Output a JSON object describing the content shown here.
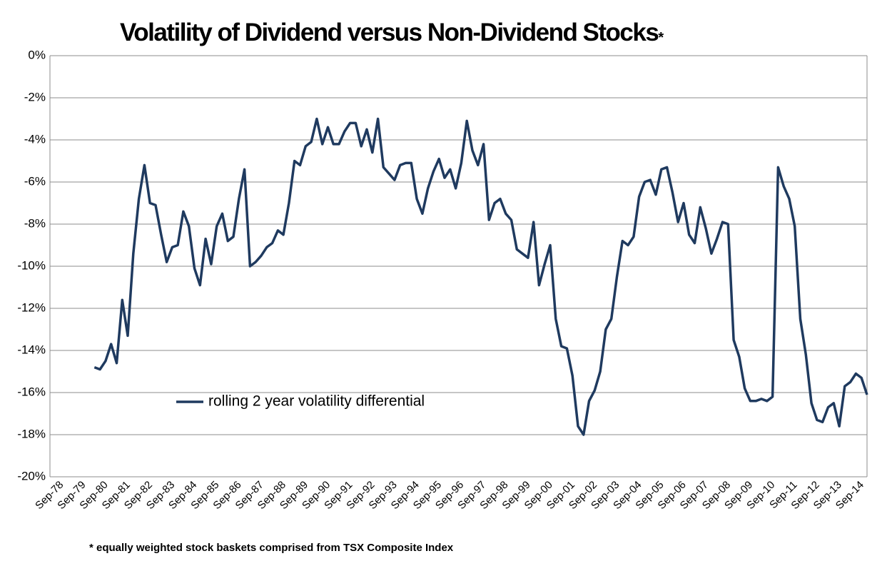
{
  "chart_data": {
    "type": "line",
    "title": "Volatility of Dividend versus Non-Dividend Stocks",
    "title_note": "*",
    "footnote": "* equally weighted stock baskets comprised from TSX Composite Index",
    "categories": [
      "Sep-78",
      null,
      null,
      null,
      "Sep-79",
      null,
      null,
      null,
      "Sep-80",
      null,
      null,
      null,
      "Sep-81",
      null,
      null,
      null,
      "Sep-82",
      null,
      null,
      null,
      "Sep-83",
      null,
      null,
      null,
      "Sep-84",
      null,
      null,
      null,
      "Sep-85",
      null,
      null,
      null,
      "Sep-86",
      null,
      null,
      null,
      "Sep-87",
      null,
      null,
      null,
      "Sep-88",
      null,
      null,
      null,
      "Sep-89",
      null,
      null,
      null,
      "Sep-90",
      null,
      null,
      null,
      "Sep-91",
      null,
      null,
      null,
      "Sep-92",
      null,
      null,
      null,
      "Sep-93",
      null,
      null,
      null,
      "Sep-94",
      null,
      null,
      null,
      "Sep-95",
      null,
      null,
      null,
      "Sep-96",
      null,
      null,
      null,
      "Sep-97",
      null,
      null,
      null,
      "Sep-98",
      null,
      null,
      null,
      "Sep-99",
      null,
      null,
      null,
      "Sep-00",
      null,
      null,
      null,
      "Sep-01",
      null,
      null,
      null,
      "Sep-02",
      null,
      null,
      null,
      "Sep-03",
      null,
      null,
      null,
      "Sep-04",
      null,
      null,
      null,
      "Sep-05",
      null,
      null,
      null,
      "Sep-06",
      null,
      null,
      null,
      "Sep-07",
      null,
      null,
      null,
      "Sep-08",
      null,
      null,
      null,
      "Sep-09",
      null,
      null,
      null,
      "Sep-10",
      null,
      null,
      null,
      "Sep-11",
      null,
      null,
      null,
      "Sep-12",
      null,
      null,
      null,
      "Sep-13",
      null,
      null,
      null,
      "Sep-14",
      null
    ],
    "series": [
      {
        "name": "rolling 2 year volatility differential",
        "color": "#1f3a5f",
        "values": [
          null,
          null,
          null,
          null,
          null,
          null,
          -14.8,
          -14.9,
          -14.5,
          -13.7,
          -14.6,
          -11.6,
          -13.3,
          -9.4,
          -6.8,
          -5.2,
          -7.0,
          -7.1,
          -8.5,
          -9.8,
          -9.1,
          -9.0,
          -7.4,
          -8.1,
          -10.1,
          -10.9,
          -8.7,
          -9.9,
          -8.1,
          -7.5,
          -8.8,
          -8.6,
          -6.8,
          -5.4,
          -10.0,
          -9.8,
          -9.5,
          -9.1,
          -8.9,
          -8.3,
          -8.5,
          -7.0,
          -5.0,
          -5.2,
          -4.3,
          -4.1,
          -3.0,
          -4.2,
          -3.4,
          -4.2,
          -4.2,
          -3.6,
          -3.2,
          -3.2,
          -4.3,
          -3.5,
          -4.6,
          -3.0,
          -5.3,
          -5.6,
          -5.9,
          -5.2,
          -5.1,
          -5.1,
          -6.8,
          -7.5,
          -6.3,
          -5.5,
          -4.9,
          -5.8,
          -5.4,
          -6.3,
          -5.1,
          -3.1,
          -4.5,
          -5.2,
          -4.2,
          -7.8,
          -7.0,
          -6.8,
          -7.5,
          -7.8,
          -9.2,
          -9.4,
          -9.6,
          -7.9,
          -10.9,
          -9.9,
          -9.0,
          -12.5,
          -13.8,
          -13.9,
          -15.2,
          -17.6,
          -18.0,
          -16.4,
          -15.9,
          -15.0,
          -13.0,
          -12.5,
          -10.5,
          -8.8,
          -9.0,
          -8.6,
          -6.7,
          -6.0,
          -5.9,
          -6.6,
          -5.4,
          -5.3,
          -6.5,
          -7.9,
          -7.0,
          -8.5,
          -8.9,
          -7.2,
          -8.2,
          -9.4,
          -8.7,
          -7.9,
          -8.0,
          -13.5,
          -14.3,
          -15.8,
          -16.4,
          -16.4,
          -16.3,
          -16.4,
          -16.2,
          -5.3,
          -6.2,
          -6.8,
          -8.1,
          -12.5,
          -14.2,
          -16.5,
          -17.3,
          -17.4,
          -16.7,
          -16.5,
          -17.6,
          -15.7,
          -15.5,
          -15.1,
          -15.3,
          -16.1
        ]
      }
    ],
    "ylim": [
      -20,
      0
    ],
    "yticks": [
      {
        "value": 0,
        "label": "0%"
      },
      {
        "value": -2,
        "label": "-2%"
      },
      {
        "value": -4,
        "label": "-4%"
      },
      {
        "value": -6,
        "label": "-6%"
      },
      {
        "value": -8,
        "label": "-8%"
      },
      {
        "value": -10,
        "label": "-10%"
      },
      {
        "value": -12,
        "label": "-12%"
      },
      {
        "value": -14,
        "label": "-14%"
      },
      {
        "value": -16,
        "label": "-16%"
      },
      {
        "value": -18,
        "label": "-18%"
      },
      {
        "value": -20,
        "label": "-20%"
      }
    ],
    "grid": true
  }
}
